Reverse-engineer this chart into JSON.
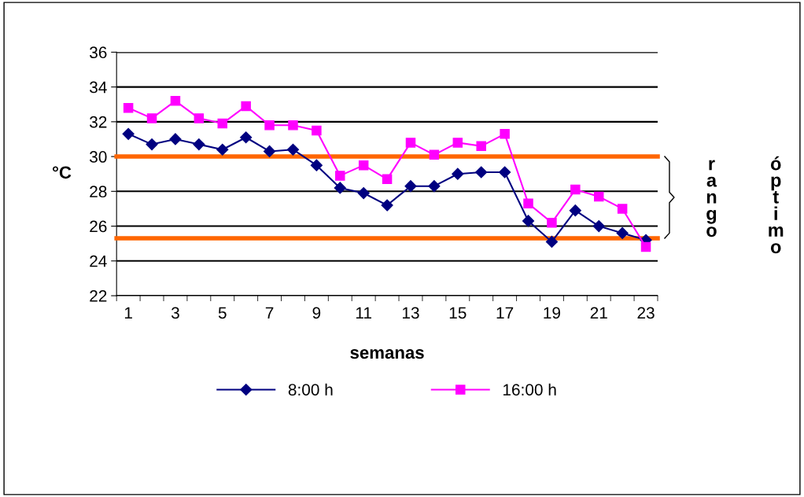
{
  "chart_data": {
    "type": "line",
    "xlabel": "semanas",
    "ylabel": "°C",
    "categories": [
      "1",
      null,
      "3",
      null,
      "5",
      null,
      "7",
      null,
      "9",
      null,
      "11",
      null,
      "13",
      null,
      "15",
      null,
      "17",
      null,
      "19",
      null,
      "21",
      null,
      "23"
    ],
    "series": [
      {
        "name": "8:00 h",
        "color": "#000080",
        "marker": "diamond",
        "values": [
          31.3,
          30.7,
          31.0,
          30.7,
          30.4,
          31.1,
          30.3,
          30.4,
          29.5,
          28.2,
          27.9,
          27.2,
          28.3,
          28.3,
          29.0,
          29.1,
          29.1,
          26.3,
          25.1,
          26.9,
          26.0,
          25.6,
          25.2
        ]
      },
      {
        "name": "16:00 h",
        "color": "#ff00ff",
        "marker": "square",
        "values": [
          32.8,
          32.2,
          33.2,
          32.2,
          31.9,
          32.9,
          31.8,
          31.8,
          31.5,
          28.9,
          29.5,
          28.7,
          30.8,
          30.1,
          30.8,
          30.6,
          31.3,
          27.3,
          26.2,
          28.1,
          27.7,
          27.0,
          24.8
        ]
      }
    ],
    "ylim": [
      22,
      36
    ],
    "yticks": [
      22,
      24,
      26,
      28,
      30,
      32,
      34,
      36
    ],
    "grid": "y",
    "legend": "bottom",
    "ref_lines": [
      {
        "axis": "y",
        "value": 30,
        "color": "#ff6600"
      },
      {
        "axis": "y",
        "value": 25.3,
        "color": "#ff6600"
      }
    ],
    "annotations": [
      "rango",
      "óptimo"
    ]
  }
}
